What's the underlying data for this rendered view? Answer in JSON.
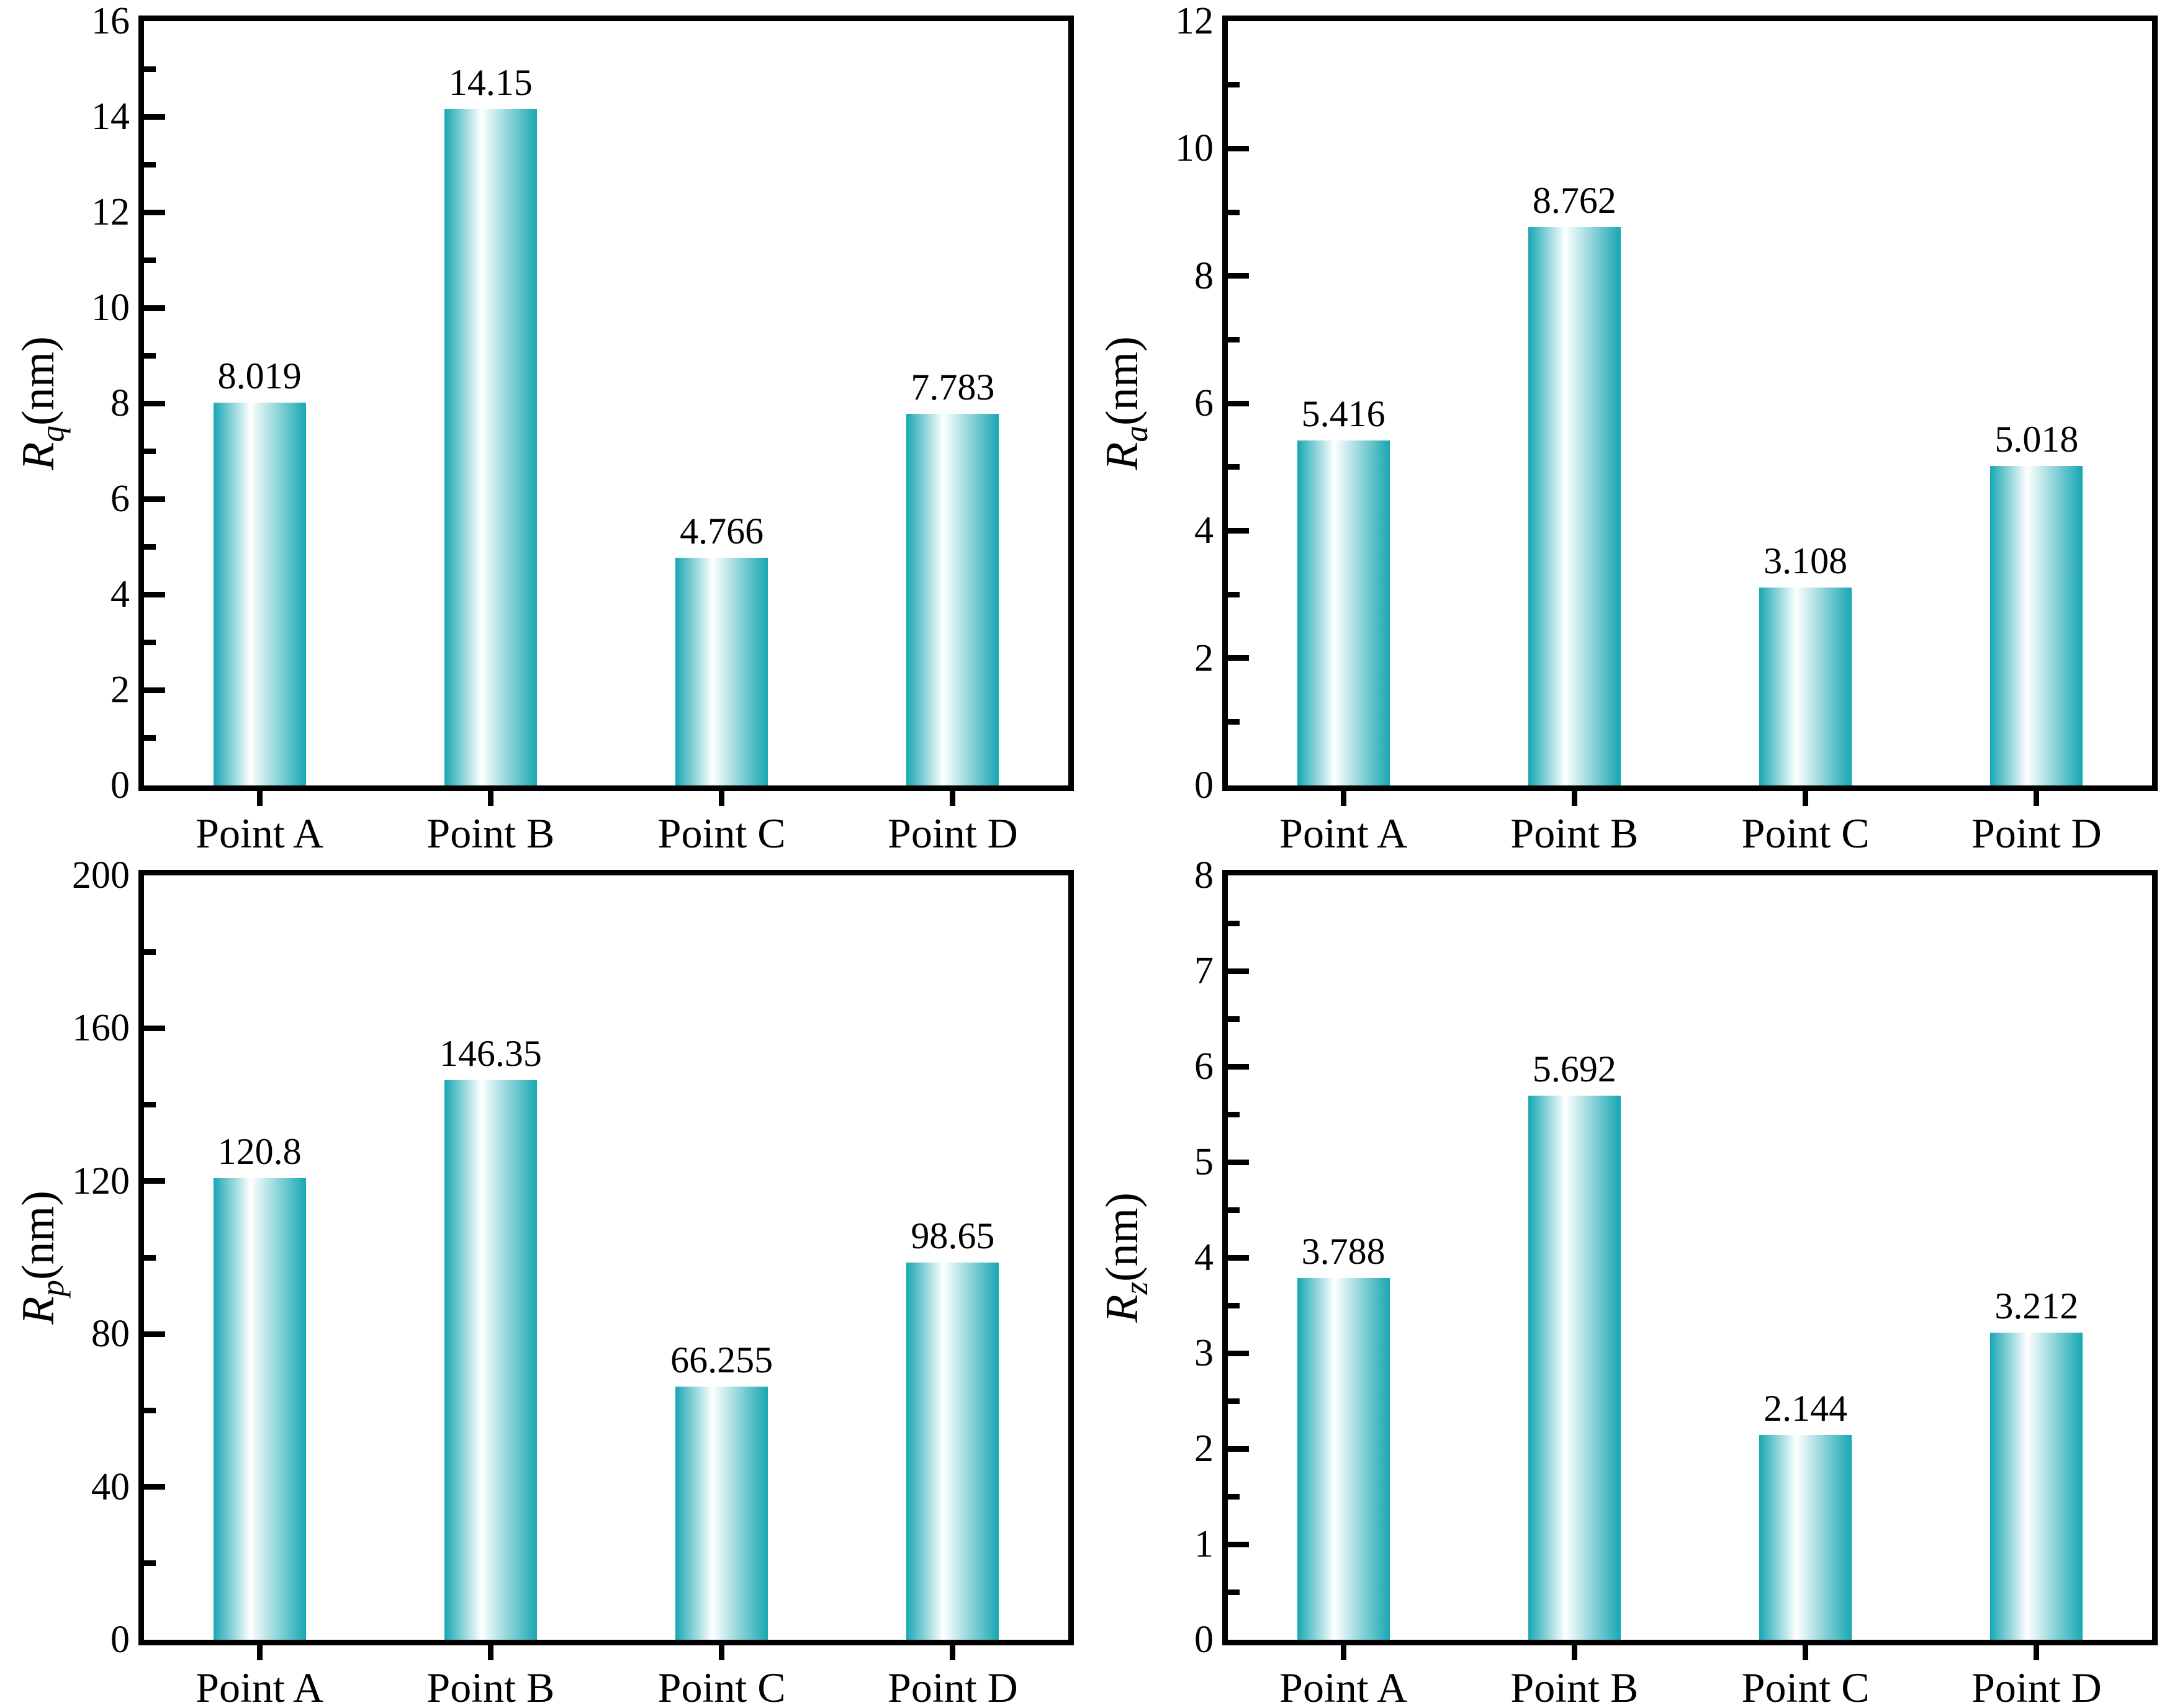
{
  "figure": {
    "background": "#ffffff",
    "layout": "2x2 grid of bar charts",
    "categories_shared": [
      "Point A",
      "Point B",
      "Point C",
      "Point D"
    ]
  },
  "style": {
    "bar_edge_color": "#17a7b3",
    "bar_center_color": "#ffffff",
    "bar_gradient_direction": "horizontal",
    "axis_color": "#000000",
    "text_color": "#000000",
    "grid": false,
    "legend": "none"
  },
  "chart_data": [
    {
      "type": "bar",
      "position": "top-left",
      "ylabel_variable": "R",
      "ylabel_subscript": "q",
      "ylabel_unit": "(nm)",
      "ylabel_text": "Rq(nm)",
      "categories": [
        "Point A",
        "Point B",
        "Point C",
        "Point D"
      ],
      "values": [
        8.019,
        14.15,
        4.766,
        7.783
      ],
      "value_labels": [
        "8.019",
        "14.15",
        "4.766",
        "7.783"
      ],
      "ylim": [
        0,
        16
      ],
      "ytick_step": 2,
      "yminor_step": 1,
      "ytick_labels": [
        "0",
        "2",
        "4",
        "6",
        "8",
        "10",
        "12",
        "14",
        "16"
      ]
    },
    {
      "type": "bar",
      "position": "top-right",
      "ylabel_variable": "R",
      "ylabel_subscript": "a",
      "ylabel_unit": "(nm)",
      "ylabel_text": "Ra(nm)",
      "categories": [
        "Point A",
        "Point B",
        "Point C",
        "Point D"
      ],
      "values": [
        5.416,
        8.762,
        3.108,
        5.018
      ],
      "value_labels": [
        "5.416",
        "8.762",
        "3.108",
        "5.018"
      ],
      "ylim": [
        0,
        12
      ],
      "ytick_step": 2,
      "yminor_step": 1,
      "ytick_labels": [
        "0",
        "2",
        "4",
        "6",
        "8",
        "10",
        "12"
      ]
    },
    {
      "type": "bar",
      "position": "bottom-left",
      "ylabel_variable": "R",
      "ylabel_subscript": "p",
      "ylabel_unit": "(nm)",
      "ylabel_text": "Rp(nm)",
      "categories": [
        "Point A",
        "Point B",
        "Point C",
        "Point D"
      ],
      "values": [
        120.8,
        146.35,
        66.255,
        98.65
      ],
      "value_labels": [
        "120.8",
        "146.35",
        "66.255",
        "98.65"
      ],
      "ylim": [
        0,
        200
      ],
      "ytick_step": 40,
      "yminor_step": 20,
      "ytick_labels": [
        "0",
        "40",
        "80",
        "120",
        "160",
        "200"
      ]
    },
    {
      "type": "bar",
      "position": "bottom-right",
      "ylabel_variable": "R",
      "ylabel_subscript": "z",
      "ylabel_unit": "(nm)",
      "ylabel_text": "Rz(nm)",
      "categories": [
        "Point A",
        "Point B",
        "Point C",
        "Point D"
      ],
      "values": [
        3.788,
        5.692,
        2.144,
        3.212
      ],
      "value_labels": [
        "3.788",
        "5.692",
        "2.144",
        "3.212"
      ],
      "ylim": [
        0,
        8
      ],
      "ytick_step": 1,
      "yminor_step": 0.5,
      "ytick_labels": [
        "0",
        "1",
        "2",
        "3",
        "4",
        "5",
        "6",
        "7",
        "8"
      ]
    }
  ]
}
